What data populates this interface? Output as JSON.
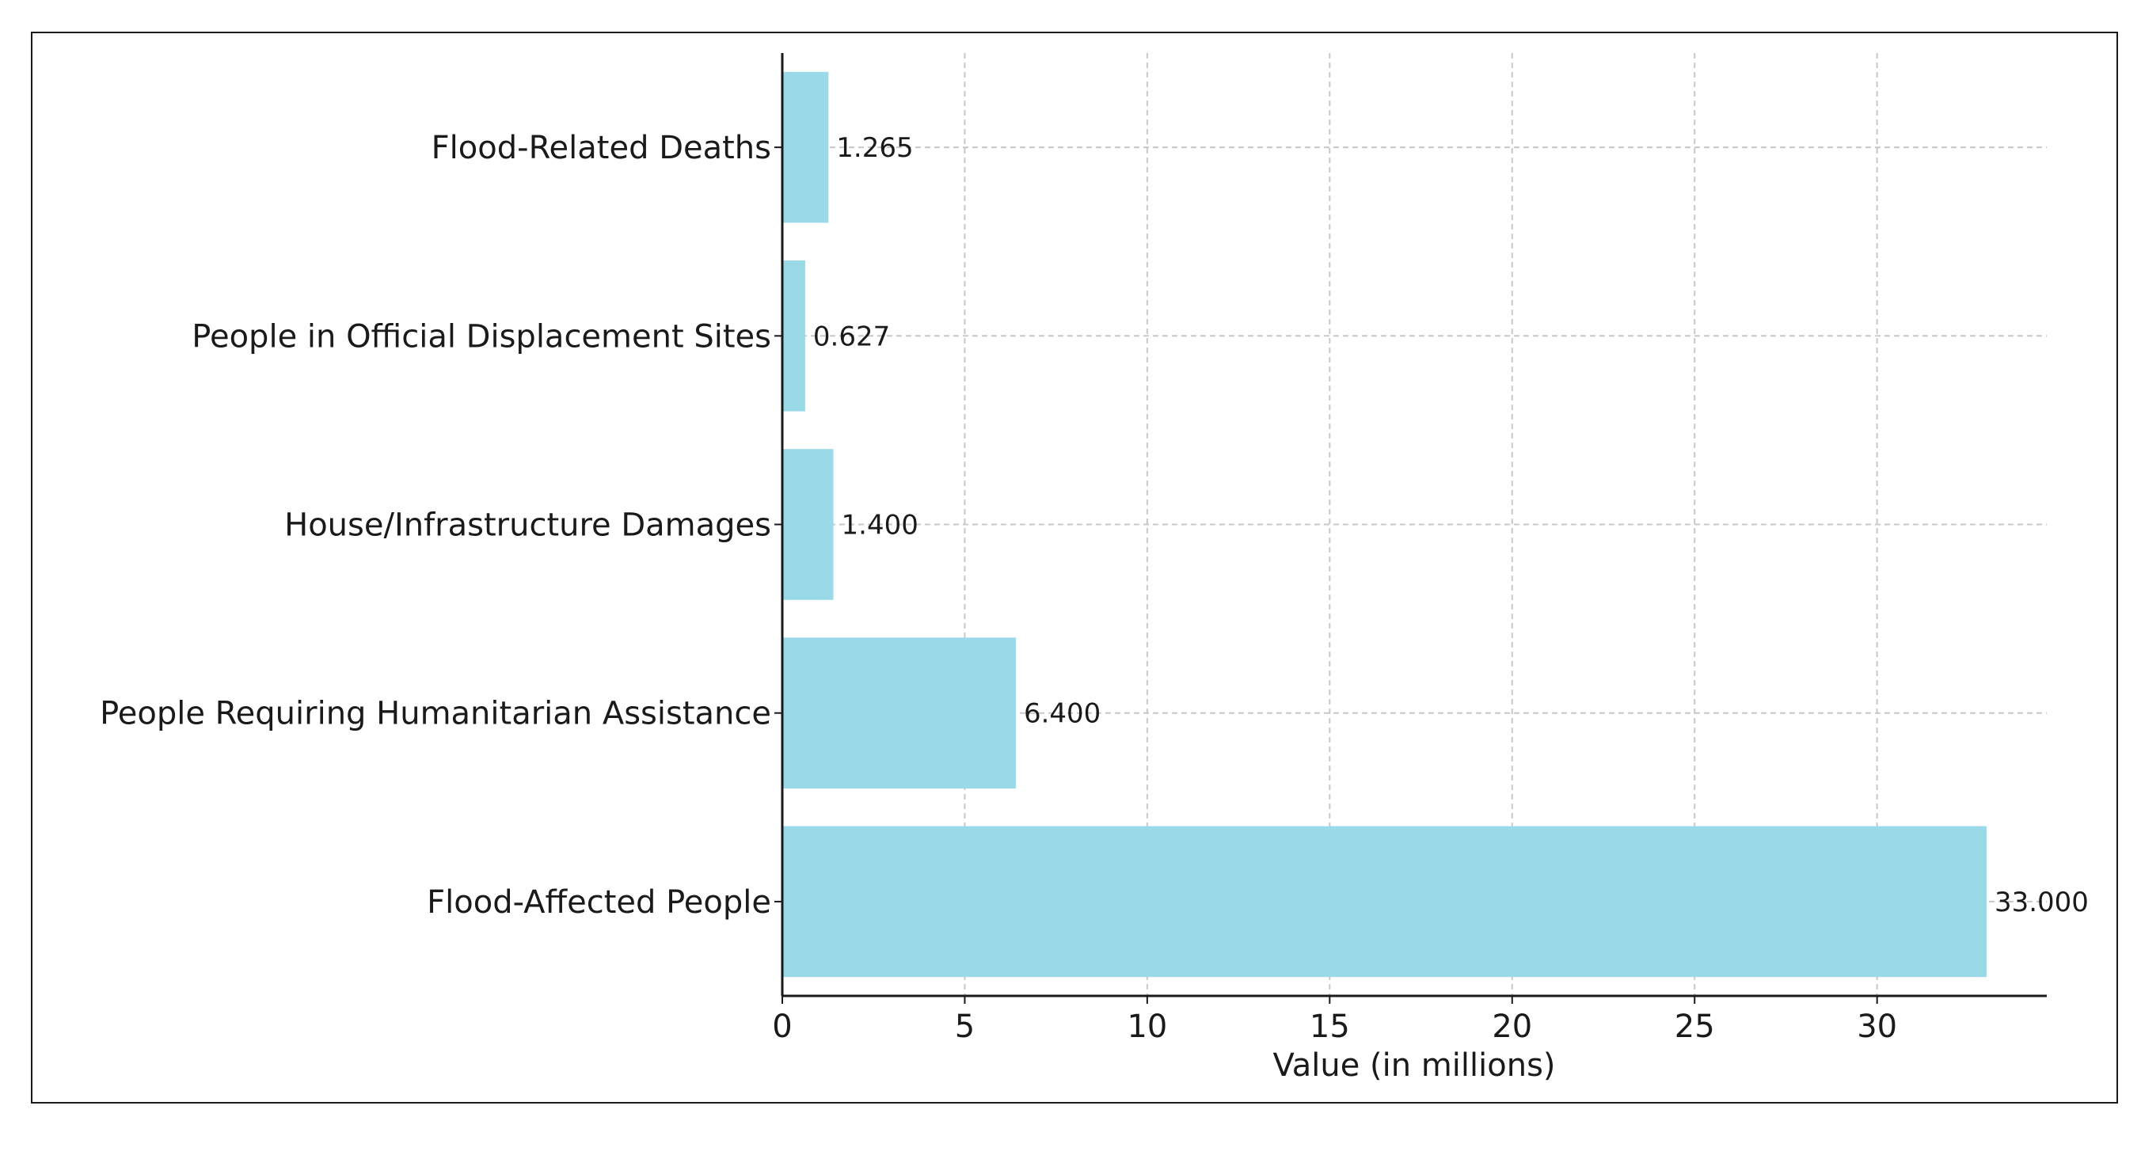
{
  "chart_data": {
    "type": "bar",
    "orientation": "horizontal",
    "categories": [
      "Flood-Affected People",
      "People Requiring Humanitarian Assistance",
      "House/Infrastructure Damages",
      "People in Official Displacement Sites",
      "Flood-Related Deaths"
    ],
    "values": [
      33.0,
      6.4,
      1.4,
      0.627,
      1.265
    ],
    "value_labels": [
      "33.000",
      "6.400",
      "1.400",
      "0.627",
      "1.265"
    ],
    "title": "",
    "xlabel": "Value (in millions)",
    "ylabel": "",
    "xlim": [
      0,
      34.65
    ],
    "xticks": [
      0,
      5,
      10,
      15,
      20,
      25,
      30
    ],
    "grid": true,
    "bar_color": "#9ad9e8",
    "axis_color": "#1a1a1a",
    "grid_color": "#c8c8c8"
  }
}
